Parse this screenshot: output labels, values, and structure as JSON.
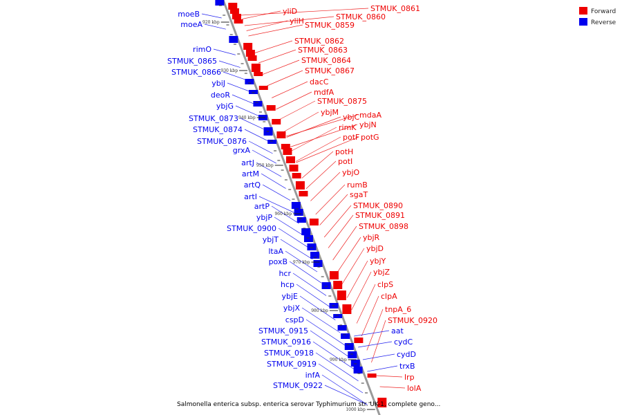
{
  "colors": {
    "forward": "#ee0000",
    "reverse": "#0000ee",
    "backbone": "#9a9a9a",
    "forward_leader": "#ee2222",
    "reverse_leader": "#2222ee"
  },
  "legend": [
    {
      "label": "Forward",
      "color": "#ee0000"
    },
    {
      "label": "Reverse",
      "color": "#0000ee"
    }
  ],
  "caption": "Salmonella enterica subsp. enterica serovar Typhimurium str. UK-1, complete geno...",
  "scale_labels": [
    "920 kbp",
    "930 kbp",
    "940 kbp",
    "950 kbp",
    "960 kbp",
    "970 kbp",
    "980 kbp",
    "990 kbp",
    "1000 kbp"
  ],
  "reverse_labels": [
    "moeB",
    "moeA",
    "rimO",
    "STMUK_0865",
    "STMUK_0866",
    "ybiJ",
    "deoR",
    "ybjG",
    "STMUK_0873",
    "STMUK_0874",
    "STMUK_0876",
    "grxA",
    "artJ",
    "artM",
    "artQ",
    "artI",
    "artP",
    "ybjP",
    "STMUK_0900",
    "ybjT",
    "ltaA",
    "poxB",
    "hcr",
    "hcp",
    "ybjE",
    "ybjX",
    "cspD",
    "STMUK_0915",
    "STMUK_0916",
    "STMUK_0918",
    "STMUK_0919",
    "infA",
    "STMUK_0922"
  ],
  "forward_labels": [
    "STMUK_0861",
    "yliD",
    "STMUK_0860",
    "yliH",
    "STMUK_0859",
    "STMUK_0862",
    "STMUK_0863",
    "STMUK_0864",
    "STMUK_0867",
    "dacC",
    "mdfA",
    "STMUK_0875",
    "ybjM",
    "ybjC",
    "mdaA",
    "ybjN",
    "rimK",
    "potF",
    "potG",
    "potH",
    "potI",
    "ybjO",
    "rumB",
    "sgaT",
    "STMUK_0890",
    "STMUK_0891",
    "STMUK_0898",
    "ybjR",
    "ybjD",
    "ybjY",
    "ybjZ",
    "clpS",
    "clpA",
    "tnpA_6",
    "STMUK_0920"
  ],
  "right_reverse_labels": [
    "aat",
    "cydC",
    "cydD",
    "trxB"
  ],
  "right_forward_labels": [
    "lrp",
    "lolA"
  ]
}
